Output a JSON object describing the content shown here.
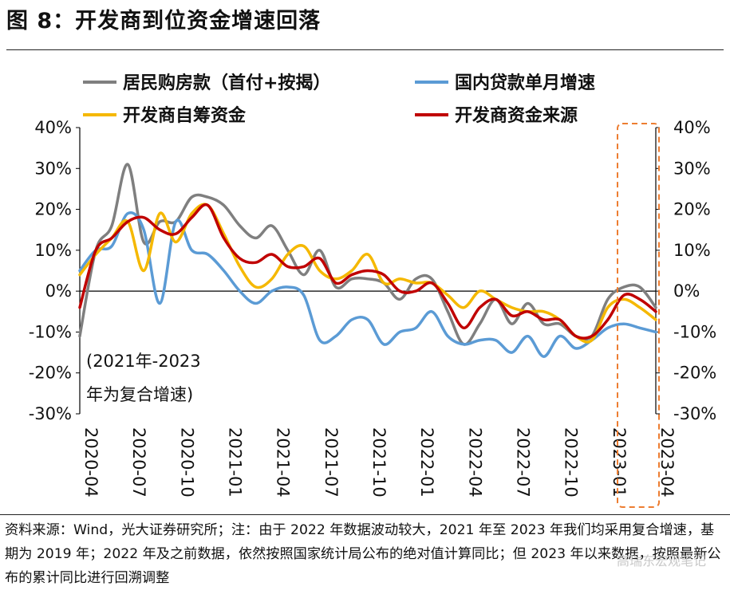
{
  "title": "图 8：开发商到位资金增速回落",
  "note": "资料来源：Wind，光大证券研究所；注：由于 2022 年数据波动较大，2021 年至 2023 年我们均采用复合增速，基期为 2019 年；2022 年及之前数据，依然按照国家统计局公布的绝对值计算同比；但 2023 年以来数据，按照最新公布的累计同比进行回溯调整",
  "watermark": "高瑞东宏观笔记",
  "chart_data": {
    "type": "line",
    "x": [
      "2020-04",
      "2020-05",
      "2020-06",
      "2020-07",
      "2020-08",
      "2020-09",
      "2020-10",
      "2020-11",
      "2020-12",
      "2021-01",
      "2021-02",
      "2021-03",
      "2021-04",
      "2021-05",
      "2021-06",
      "2021-07",
      "2021-08",
      "2021-09",
      "2021-10",
      "2021-11",
      "2021-12",
      "2022-01",
      "2022-02",
      "2022-03",
      "2022-04",
      "2022-05",
      "2022-06",
      "2022-07",
      "2022-08",
      "2022-09",
      "2022-10",
      "2022-11",
      "2022-12",
      "2023-01",
      "2023-02",
      "2023-03",
      "2023-04"
    ],
    "xticks": [
      "2020-04",
      "2020-07",
      "2020-10",
      "2021-01",
      "2021-04",
      "2021-07",
      "2021-10",
      "2022-01",
      "2022-04",
      "2022-07",
      "2022-10",
      "2023-01",
      "2023-04"
    ],
    "ylim": [
      -30,
      40
    ],
    "yticks": [
      "40%",
      "30%",
      "20%",
      "10%",
      "0%",
      "-10%",
      "-20%",
      "-30%"
    ],
    "ytick_values": [
      40,
      30,
      20,
      10,
      0,
      -10,
      -20,
      -30
    ],
    "annotation": [
      "(2021年-2023",
      "年为复合增速)"
    ],
    "series": [
      {
        "name": "居民购房款（首付+按揭）",
        "color": "#7f7f7f",
        "values": [
          -11,
          10,
          16,
          31,
          12,
          17,
          17,
          23,
          23,
          21,
          16,
          13,
          16,
          10,
          4,
          10,
          1,
          3,
          3,
          2,
          -2,
          3,
          3,
          -5,
          -13,
          -8,
          -2,
          -8,
          -3,
          -8,
          -8,
          -11,
          -11,
          -2,
          1,
          1,
          -4
        ]
      },
      {
        "name": "国内贷款单月增速",
        "color": "#5b9bd5",
        "values": [
          5,
          10,
          11,
          19,
          15,
          -3,
          17,
          10,
          9,
          5,
          0,
          -3,
          0,
          1,
          -1,
          -12,
          -11,
          -7,
          -7,
          -13,
          -10,
          -9,
          -5,
          -11,
          -13,
          -12,
          -12,
          -15,
          -11,
          -16,
          -11,
          -14,
          -12,
          -9,
          -8,
          -9,
          -10
        ]
      },
      {
        "name": "开发商自筹资金",
        "color": "#f5b800",
        "values": [
          4,
          9,
          13,
          17,
          5,
          19,
          12,
          19,
          21,
          14,
          6,
          1,
          3,
          9,
          11,
          5,
          3,
          5,
          9,
          2,
          3,
          2,
          2,
          -1,
          -4,
          0,
          -2,
          -4,
          -5,
          -5,
          -7,
          -11,
          -12,
          -4,
          -2,
          -4,
          -7
        ]
      },
      {
        "name": "开发商资金来源",
        "color": "#c00000",
        "values": [
          -4,
          10,
          13,
          17,
          18,
          15,
          14,
          18,
          21,
          13,
          8,
          7,
          9,
          6,
          6,
          8,
          2,
          4,
          5,
          4,
          0,
          0,
          2,
          -3,
          -9,
          -4,
          -2,
          -6,
          -5,
          -7,
          -7,
          -11,
          -11,
          -7,
          -1,
          -2,
          -5
        ]
      }
    ]
  }
}
